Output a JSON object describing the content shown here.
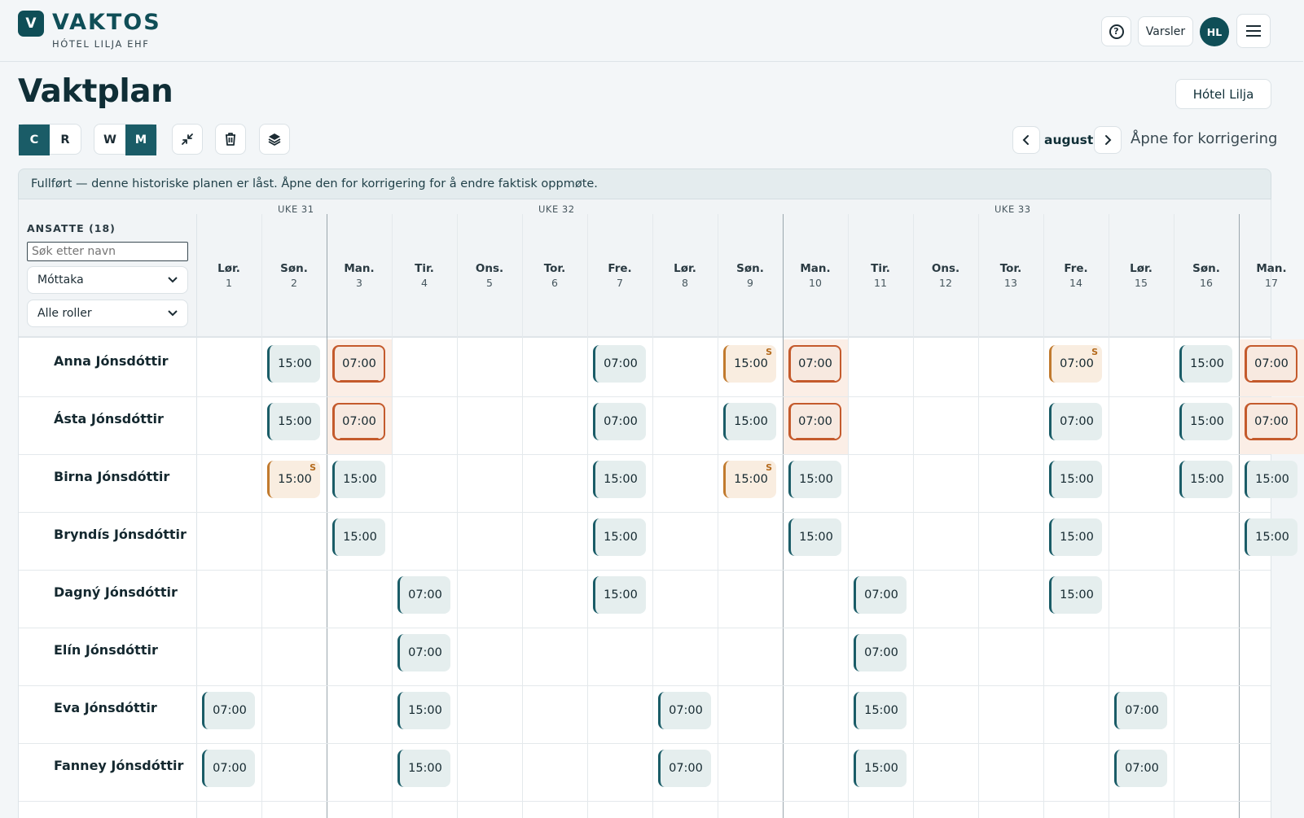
{
  "header": {
    "logo_letter": "V",
    "brand": "VAKTOS",
    "org": "HÓTEL LILJA EHF",
    "help_symbol": "?",
    "alerts_label": "Varsler",
    "avatar_initials": "HL"
  },
  "page": {
    "title": "Vaktplan",
    "hotel_button": "Hótel Lilja"
  },
  "toolbar": {
    "mode_c": "C",
    "mode_r": "R",
    "view_w": "W",
    "view_m": "M",
    "month": "august",
    "open_correction": "Åpne for korrigering"
  },
  "banner": "Fullført — denne historiske planen er låst. Åpne den for korrigering for å endre faktisk oppmøte.",
  "sidebar": {
    "employees_header": "ANSATTE (18)",
    "search_placeholder": "Søk etter navn",
    "department": "Móttaka",
    "roles": "Alle roller"
  },
  "weeks": [
    "UKE 31",
    "UKE 32",
    "UKE 33"
  ],
  "days": [
    {
      "name": "Lør.",
      "num": "1"
    },
    {
      "name": "Søn.",
      "num": "2"
    },
    {
      "name": "Man.",
      "num": "3"
    },
    {
      "name": "Tir.",
      "num": "4"
    },
    {
      "name": "Ons.",
      "num": "5"
    },
    {
      "name": "Tor.",
      "num": "6"
    },
    {
      "name": "Fre.",
      "num": "7"
    },
    {
      "name": "Lør.",
      "num": "8"
    },
    {
      "name": "Søn.",
      "num": "9"
    },
    {
      "name": "Man.",
      "num": "10"
    },
    {
      "name": "Tir.",
      "num": "11"
    },
    {
      "name": "Ons.",
      "num": "12"
    },
    {
      "name": "Tor.",
      "num": "13"
    },
    {
      "name": "Fre.",
      "num": "14"
    },
    {
      "name": "Lør.",
      "num": "15"
    },
    {
      "name": "Søn.",
      "num": "16"
    },
    {
      "name": "Man.",
      "num": "17"
    }
  ],
  "employees": [
    {
      "name": "Anna Jónsdóttir",
      "shifts": [
        {
          "day": 1,
          "time": "15:00",
          "type": "normal"
        },
        {
          "day": 2,
          "time": "07:00",
          "type": "alt"
        },
        {
          "day": 6,
          "time": "07:00",
          "type": "normal"
        },
        {
          "day": 8,
          "time": "15:00",
          "type": "s"
        },
        {
          "day": 9,
          "time": "07:00",
          "type": "alt"
        },
        {
          "day": 13,
          "time": "07:00",
          "type": "s"
        },
        {
          "day": 15,
          "time": "15:00",
          "type": "normal"
        },
        {
          "day": 16,
          "time": "07:00",
          "type": "alt"
        }
      ]
    },
    {
      "name": "Ásta Jónsdóttir",
      "shifts": [
        {
          "day": 1,
          "time": "15:00",
          "type": "normal"
        },
        {
          "day": 2,
          "time": "07:00",
          "type": "alt"
        },
        {
          "day": 6,
          "time": "07:00",
          "type": "normal"
        },
        {
          "day": 8,
          "time": "15:00",
          "type": "normal"
        },
        {
          "day": 9,
          "time": "07:00",
          "type": "alt"
        },
        {
          "day": 13,
          "time": "07:00",
          "type": "normal"
        },
        {
          "day": 15,
          "time": "15:00",
          "type": "normal"
        },
        {
          "day": 16,
          "time": "07:00",
          "type": "alt"
        }
      ]
    },
    {
      "name": "Birna Jónsdóttir",
      "shifts": [
        {
          "day": 1,
          "time": "15:00",
          "type": "s"
        },
        {
          "day": 2,
          "time": "15:00",
          "type": "normal"
        },
        {
          "day": 6,
          "time": "15:00",
          "type": "normal"
        },
        {
          "day": 8,
          "time": "15:00",
          "type": "s"
        },
        {
          "day": 9,
          "time": "15:00",
          "type": "normal"
        },
        {
          "day": 13,
          "time": "15:00",
          "type": "normal"
        },
        {
          "day": 15,
          "time": "15:00",
          "type": "normal"
        },
        {
          "day": 16,
          "time": "15:00",
          "type": "normal"
        }
      ]
    },
    {
      "name": "Bryndís Jónsdóttir",
      "shifts": [
        {
          "day": 2,
          "time": "15:00",
          "type": "normal"
        },
        {
          "day": 6,
          "time": "15:00",
          "type": "normal"
        },
        {
          "day": 9,
          "time": "15:00",
          "type": "normal"
        },
        {
          "day": 13,
          "time": "15:00",
          "type": "normal"
        },
        {
          "day": 16,
          "time": "15:00",
          "type": "normal"
        }
      ]
    },
    {
      "name": "Dagný Jónsdóttir",
      "shifts": [
        {
          "day": 3,
          "time": "07:00",
          "type": "normal"
        },
        {
          "day": 6,
          "time": "15:00",
          "type": "normal"
        },
        {
          "day": 10,
          "time": "07:00",
          "type": "normal"
        },
        {
          "day": 13,
          "time": "15:00",
          "type": "normal"
        }
      ]
    },
    {
      "name": "Elín Jónsdóttir",
      "shifts": [
        {
          "day": 3,
          "time": "07:00",
          "type": "normal"
        },
        {
          "day": 10,
          "time": "07:00",
          "type": "normal"
        }
      ]
    },
    {
      "name": "Eva Jónsdóttir",
      "shifts": [
        {
          "day": 0,
          "time": "07:00",
          "type": "normal"
        },
        {
          "day": 3,
          "time": "15:00",
          "type": "normal"
        },
        {
          "day": 7,
          "time": "07:00",
          "type": "normal"
        },
        {
          "day": 10,
          "time": "15:00",
          "type": "normal"
        },
        {
          "day": 14,
          "time": "07:00",
          "type": "normal"
        }
      ]
    },
    {
      "name": "Fanney Jónsdóttir",
      "shifts": [
        {
          "day": 0,
          "time": "07:00",
          "type": "normal"
        },
        {
          "day": 3,
          "time": "15:00",
          "type": "normal"
        },
        {
          "day": 7,
          "time": "07:00",
          "type": "normal"
        },
        {
          "day": 10,
          "time": "15:00",
          "type": "normal"
        },
        {
          "day": 14,
          "time": "07:00",
          "type": "normal"
        }
      ]
    }
  ]
}
